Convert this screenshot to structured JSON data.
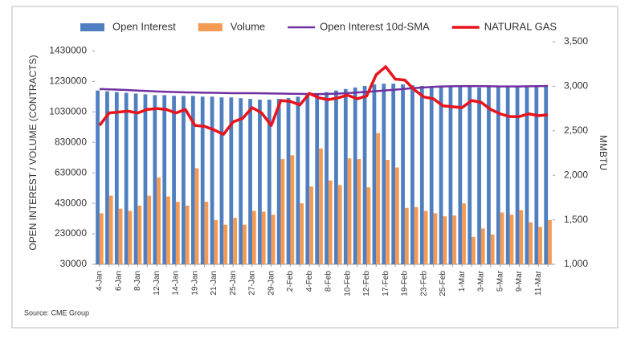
{
  "chart_data": {
    "type": "bar",
    "y_label": "OPEN INTEREST / VOLUME (CONTRACTS)",
    "y2_label": "MMBTU",
    "source": "Source: CME Group",
    "categories": [
      "4-Jan",
      null,
      "6-Jan",
      null,
      "8-Jan",
      null,
      "12-Jan",
      null,
      "14-Jan",
      null,
      "19-Jan",
      null,
      "21-Jan",
      null,
      "25-Jan",
      null,
      "27-Jan",
      null,
      "29-Jan",
      null,
      "2-Feb",
      null,
      "4-Feb",
      null,
      "8-Feb",
      null,
      "10-Feb",
      null,
      "12-Feb",
      null,
      "17-Feb",
      null,
      "19-Feb",
      null,
      "23-Feb",
      null,
      "25-Feb",
      null,
      "1-Mar",
      null,
      "3-Mar",
      null,
      "5-Mar",
      null,
      "9-Mar",
      null,
      "11-Mar",
      null
    ],
    "series": [
      {
        "name": "Open Interest",
        "type": "bar",
        "color": "#4f7fc0",
        "values": [
          1170000,
          1165000,
          1160000,
          1155000,
          1150000,
          1145000,
          1140000,
          1140000,
          1135000,
          1135000,
          1135000,
          1130000,
          1130000,
          1125000,
          1125000,
          1120000,
          1115000,
          1110000,
          1110000,
          1115000,
          1120000,
          1130000,
          1140000,
          1150000,
          1160000,
          1170000,
          1180000,
          1190000,
          1200000,
          1210000,
          1215000,
          1215000,
          1210000,
          1205000,
          1200000,
          1200000,
          1195000,
          1195000,
          1200000,
          1195000,
          1190000,
          1195000,
          1195000,
          1195000,
          1195000,
          1200000,
          1200000,
          1205000
        ]
      },
      {
        "name": "Volume",
        "type": "bar",
        "color": "#f59a52",
        "values": [
          365000,
          480000,
          395000,
          380000,
          415000,
          480000,
          600000,
          475000,
          440000,
          415000,
          660000,
          440000,
          320000,
          290000,
          335000,
          290000,
          380000,
          375000,
          355000,
          720000,
          745000,
          430000,
          540000,
          790000,
          580000,
          550000,
          725000,
          720000,
          535000,
          890000,
          715000,
          665000,
          400000,
          405000,
          380000,
          365000,
          345000,
          350000,
          430000,
          210000,
          265000,
          225000,
          370000,
          355000,
          385000,
          305000,
          275000,
          320000
        ]
      },
      {
        "name": "Open Interest 10d-SMA",
        "type": "line",
        "color": "#7030a0",
        "values": [
          1180000,
          1178000,
          1176000,
          1173000,
          1170000,
          1167000,
          1164000,
          1162000,
          1160000,
          1158000,
          1157000,
          1156000,
          1155000,
          1154000,
          1153000,
          1153000,
          1153000,
          1152000,
          1151000,
          1150000,
          1149000,
          1148000,
          1147000,
          1147000,
          1148000,
          1150000,
          1153000,
          1157000,
          1161000,
          1166000,
          1171000,
          1176000,
          1181000,
          1186000,
          1190000,
          1194000,
          1197000,
          1198000,
          1199000,
          1199000,
          1199000,
          1198000,
          1197000,
          1197000,
          1197000,
          1198000,
          1199000,
          1200000
        ]
      },
      {
        "name": "NATURAL GAS",
        "type": "line",
        "axis": "y2",
        "color": "#e8141c",
        "values": [
          2560,
          2700,
          2710,
          2720,
          2700,
          2740,
          2750,
          2740,
          2700,
          2740,
          2560,
          2550,
          2510,
          2460,
          2600,
          2640,
          2760,
          2700,
          2560,
          2840,
          2830,
          2790,
          2920,
          2870,
          2850,
          2870,
          2900,
          2860,
          2890,
          3130,
          3220,
          3080,
          3070,
          2960,
          2880,
          2860,
          2780,
          2770,
          2760,
          2840,
          2820,
          2740,
          2690,
          2660,
          2660,
          2690,
          2670,
          2680
        ]
      }
    ],
    "ylim": [
      30000,
      1490000
    ],
    "yticks": [
      30000,
      230000,
      430000,
      630000,
      830000,
      1030000,
      1230000,
      1430000
    ],
    "y2lim": [
      1000,
      3500
    ],
    "y2ticks": [
      {
        "value": 1000,
        "label": "1,000"
      },
      {
        "value": 1500,
        "label": "1,500"
      },
      {
        "value": 2000,
        "label": "2,000"
      },
      {
        "value": 2500,
        "label": "2,500"
      },
      {
        "value": 3000,
        "label": "3,000"
      },
      {
        "value": 3500,
        "label": "3,500"
      }
    ]
  }
}
